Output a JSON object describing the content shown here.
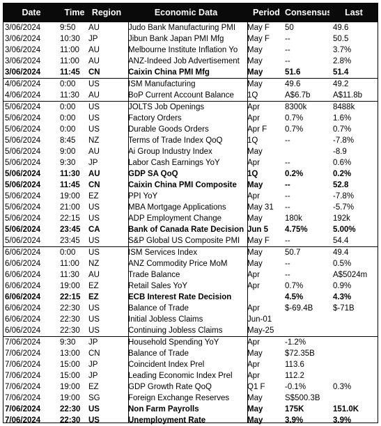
{
  "header": {
    "date": "Date",
    "time": "Time",
    "region": "Region",
    "econ": "Economic Data",
    "period": "Period",
    "consensus": "Consensus",
    "last": "Last"
  },
  "rows": [
    {
      "date": "3/06/2024",
      "time": "9:50",
      "region": "AU",
      "econ": "Judo Bank Manufacturing PMI",
      "period": "May F",
      "consensus": "50",
      "last": "49.6",
      "bold": false,
      "sep": false
    },
    {
      "date": "3/06/2024",
      "time": "10:30",
      "region": "JP",
      "econ": "Jibun Bank Japan PMI Mfg",
      "period": "May F",
      "consensus": "--",
      "last": "50.5",
      "bold": false,
      "sep": false
    },
    {
      "date": "3/06/2024",
      "time": "11:00",
      "region": "AU",
      "econ": "Melbourne Institute Inflation Yo",
      "period": "May",
      "consensus": "--",
      "last": "3.7%",
      "bold": false,
      "sep": false
    },
    {
      "date": "3/06/2024",
      "time": "11:00",
      "region": "AU",
      "econ": "ANZ-Indeed Job Advertisement",
      "period": "May",
      "consensus": "--",
      "last": "2.8%",
      "bold": false,
      "sep": false
    },
    {
      "date": "3/06/2024",
      "time": "11:45",
      "region": "CN",
      "econ": "Caixin China PMI Mfg",
      "period": "May",
      "consensus": "51.6",
      "last": "51.4",
      "bold": true,
      "sep": false
    },
    {
      "date": "4/06/2024",
      "time": "0:00",
      "region": "US",
      "econ": "ISM Manufacturing",
      "period": "May",
      "consensus": "49.6",
      "last": "49.2",
      "bold": false,
      "sep": true
    },
    {
      "date": "4/06/2024",
      "time": "11:30",
      "region": "AU",
      "econ": "BoP Current Account Balance",
      "period": "1Q",
      "consensus": "A$6.7b",
      "last": "A$11.8b",
      "bold": false,
      "sep": false
    },
    {
      "date": "5/06/2024",
      "time": "0:00",
      "region": "US",
      "econ": "JOLTS Job Openings",
      "period": "Apr",
      "consensus": "8300k",
      "last": "8488k",
      "bold": false,
      "sep": true
    },
    {
      "date": "5/06/2024",
      "time": "0:00",
      "region": "US",
      "econ": "Factory Orders",
      "period": "Apr",
      "consensus": "0.7%",
      "last": "1.6%",
      "bold": false,
      "sep": false
    },
    {
      "date": "5/06/2024",
      "time": "0:00",
      "region": "US",
      "econ": "Durable Goods Orders",
      "period": "Apr F",
      "consensus": "0.7%",
      "last": "0.7%",
      "bold": false,
      "sep": false
    },
    {
      "date": "5/06/2024",
      "time": "8:45",
      "region": "NZ",
      "econ": "Terms of Trade Index QoQ",
      "period": "1Q",
      "consensus": "--",
      "last": "-7.8%",
      "bold": false,
      "sep": false
    },
    {
      "date": "5/06/2024",
      "time": "9:00",
      "region": "AU",
      "econ": "Ai Group Industry Index",
      "period": "May",
      "consensus": "",
      "last": "-8.9",
      "bold": false,
      "sep": false
    },
    {
      "date": "5/06/2024",
      "time": "9:30",
      "region": "JP",
      "econ": "Labor Cash Earnings YoY",
      "period": "Apr",
      "consensus": "--",
      "last": "0.6%",
      "bold": false,
      "sep": false
    },
    {
      "date": "5/06/2024",
      "time": "11:30",
      "region": "AU",
      "econ": "GDP SA QoQ",
      "period": "1Q",
      "consensus": "0.2%",
      "last": "0.2%",
      "bold": true,
      "sep": false
    },
    {
      "date": "5/06/2024",
      "time": "11:45",
      "region": "CN",
      "econ": "Caixin China PMI Composite",
      "period": "May",
      "consensus": "--",
      "last": "52.8",
      "bold": true,
      "sep": false
    },
    {
      "date": "5/06/2024",
      "time": "19:00",
      "region": "EZ",
      "econ": "PPI YoY",
      "period": "Apr",
      "consensus": "--",
      "last": "-7.8%",
      "bold": false,
      "sep": false
    },
    {
      "date": "5/06/2024",
      "time": "21:00",
      "region": "US",
      "econ": "MBA Mortgage Applications",
      "period": "May 31",
      "consensus": "--",
      "last": "-5.7%",
      "bold": false,
      "sep": false
    },
    {
      "date": "5/06/2024",
      "time": "22:15",
      "region": "US",
      "econ": "ADP Employment Change",
      "period": "May",
      "consensus": "180k",
      "last": "192k",
      "bold": false,
      "sep": false
    },
    {
      "date": "5/06/2024",
      "time": "23:45",
      "region": "CA",
      "econ": "Bank of Canada Rate Decision",
      "period": "Jun 5",
      "consensus": "4.75%",
      "last": "5.00%",
      "bold": true,
      "sep": false
    },
    {
      "date": "5/06/2024",
      "time": "23:45",
      "region": "US",
      "econ": "S&P Global US Composite PMI",
      "period": "May F",
      "consensus": "--",
      "last": "54.4",
      "bold": false,
      "sep": false
    },
    {
      "date": "6/06/2024",
      "time": "0:00",
      "region": "US",
      "econ": "ISM Services Index",
      "period": "May",
      "consensus": "50.7",
      "last": "49.4",
      "bold": false,
      "sep": true
    },
    {
      "date": "6/06/2024",
      "time": "11:00",
      "region": "NZ",
      "econ": "ANZ Commodity Price MoM",
      "period": "May",
      "consensus": "--",
      "last": "0.5%",
      "bold": false,
      "sep": false
    },
    {
      "date": "6/06/2024",
      "time": "11:30",
      "region": "AU",
      "econ": "Trade Balance",
      "period": "Apr",
      "consensus": "--",
      "last": "A$5024m",
      "bold": false,
      "sep": false
    },
    {
      "date": "6/06/2024",
      "time": "19:00",
      "region": "EZ",
      "econ": "Retail Sales YoY",
      "period": "Apr",
      "consensus": "0.7%",
      "last": "0.9%",
      "bold": false,
      "sep": false
    },
    {
      "date": "6/06/2024",
      "time": "22:15",
      "region": "EZ",
      "econ": "ECB Interest Rate Decision",
      "period": "",
      "consensus": "4.5%",
      "last": "4.3%",
      "bold": true,
      "sep": false
    },
    {
      "date": "6/06/2024",
      "time": "22:30",
      "region": "US",
      "econ": "Balance of Trade",
      "period": "Apr",
      "consensus": "$-69.4B",
      "last": "$-71B",
      "bold": false,
      "sep": false
    },
    {
      "date": "6/06/2024",
      "time": "22:30",
      "region": "US",
      "econ": "Initial Jobless Claims",
      "period": "Jun-01",
      "consensus": "",
      "last": "",
      "bold": false,
      "sep": false
    },
    {
      "date": "6/06/2024",
      "time": "22:30",
      "region": "US",
      "econ": "Continuing Jobless Claims",
      "period": "May-25",
      "consensus": "",
      "last": "",
      "bold": false,
      "sep": false
    },
    {
      "date": "7/06/2024",
      "time": "9:30",
      "region": "JP",
      "econ": "Household Spending YoY",
      "period": "Apr",
      "consensus": "-1.2%",
      "last": "",
      "bold": false,
      "sep": true
    },
    {
      "date": "7/06/2024",
      "time": "13:00",
      "region": "CN",
      "econ": "Balance of Trade",
      "period": "May",
      "consensus": "$72.35B",
      "last": "",
      "bold": false,
      "sep": false
    },
    {
      "date": "7/06/2024",
      "time": "15:00",
      "region": "JP",
      "econ": "Coincident Index Prel",
      "period": "Apr",
      "consensus": "113.6",
      "last": "",
      "bold": false,
      "sep": false
    },
    {
      "date": "7/06/2024",
      "time": "15:00",
      "region": "JP",
      "econ": "Leading Economic Index Prel",
      "period": "Apr",
      "consensus": "112.2",
      "last": "",
      "bold": false,
      "sep": false
    },
    {
      "date": "7/06/2024",
      "time": "19:00",
      "region": "EZ",
      "econ": "GDP Growth Rate QoQ",
      "period": "Q1 F",
      "consensus": "-0.1%",
      "last": "0.3%",
      "bold": false,
      "sep": false
    },
    {
      "date": "7/06/2024",
      "time": "19:00",
      "region": "SG",
      "econ": "Foreign Exchange Reserves",
      "period": "May",
      "consensus": "S$500.3B",
      "last": "",
      "bold": false,
      "sep": false
    },
    {
      "date": "7/06/2024",
      "time": "22:30",
      "region": "US",
      "econ": "Non Farm Payrolls",
      "period": "May",
      "consensus": "175K",
      "last": "151.0K",
      "bold": true,
      "sep": false
    },
    {
      "date": "7/06/2024",
      "time": "22:30",
      "region": "US",
      "econ": "Unemployment Rate",
      "period": "May",
      "consensus": "3.9%",
      "last": "3.9%",
      "bold": true,
      "sep": false
    }
  ]
}
